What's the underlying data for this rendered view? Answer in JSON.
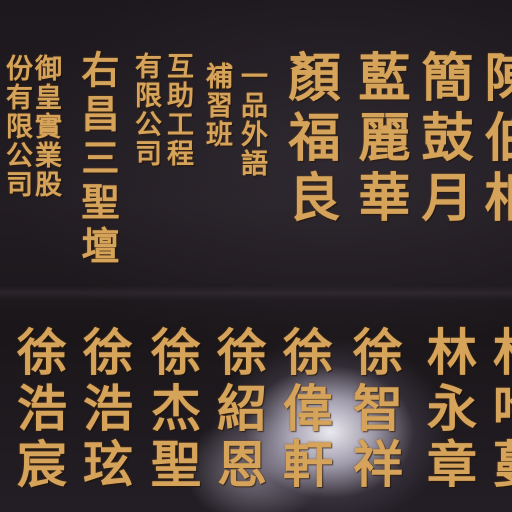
{
  "upper_row": {
    "col1": "陳伯相",
    "col2": "簡鼓月",
    "col3": "藍麗華",
    "col4": "顏福良",
    "col5": "一品外語",
    "col6": "補習班",
    "col7": "互助工程",
    "col8": "有限公司",
    "col9": "右昌三聖壇",
    "col10": "御皇實業股",
    "col11": "份有限公司"
  },
  "lower_row": {
    "col1": "林吟蔓",
    "col2": "林永章",
    "col3": "徐智祥",
    "col4": "徐偉軒",
    "col5": "徐紹恩",
    "col6": "徐杰聖",
    "col7": "徐浩玹",
    "col8": "徐浩宸"
  }
}
